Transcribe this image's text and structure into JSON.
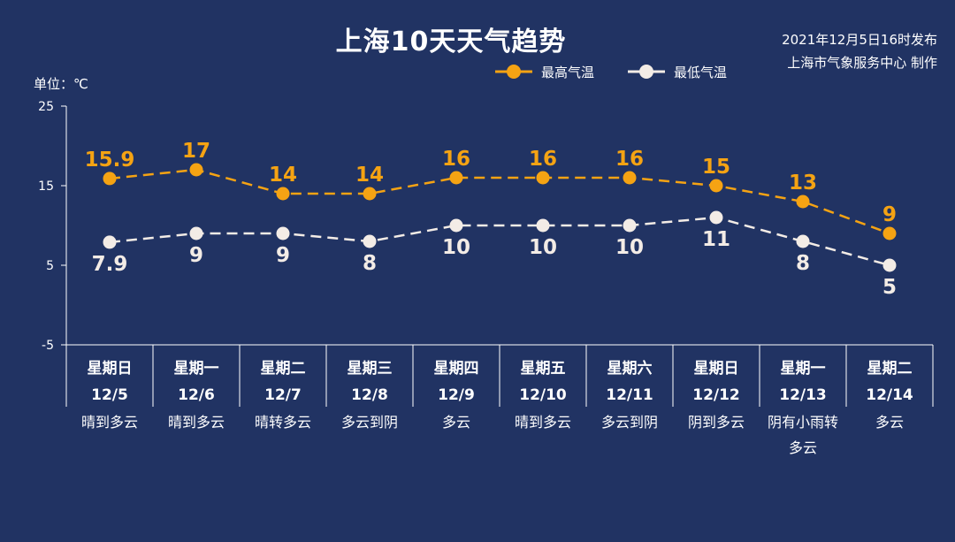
{
  "title": "上海10天天气趋势",
  "issued": "2021年12月5日16时发布",
  "publisher": "上海市气象服务中心 制作",
  "unit_label": "单位：℃",
  "colors": {
    "background": "#213363",
    "high": "#f5a313",
    "low": "#f3ece6",
    "axis": "#ffffff"
  },
  "chart_data": {
    "type": "line",
    "categories": [
      "12/5",
      "12/6",
      "12/7",
      "12/8",
      "12/9",
      "12/10",
      "12/11",
      "12/12",
      "12/13",
      "12/14"
    ],
    "weekdays": [
      "星期日",
      "星期一",
      "星期二",
      "星期三",
      "星期四",
      "星期五",
      "星期六",
      "星期日",
      "星期一",
      "星期二"
    ],
    "weather": [
      [
        "晴到多云"
      ],
      [
        "晴到多云"
      ],
      [
        "晴转多云"
      ],
      [
        "多云到阴"
      ],
      [
        "多云"
      ],
      [
        "晴到多云"
      ],
      [
        "多云到阴"
      ],
      [
        "阴到多云"
      ],
      [
        "阴有小雨转",
        "多云"
      ],
      [
        "多云"
      ]
    ],
    "series": [
      {
        "name": "最高气温",
        "values": [
          15.9,
          17,
          14,
          14,
          16,
          16,
          16,
          15,
          13,
          9
        ],
        "labels": [
          "15.9",
          "17",
          "14",
          "14",
          "16",
          "16",
          "16",
          "15",
          "13",
          "9"
        ],
        "color": "#f5a313",
        "label_position": "above"
      },
      {
        "name": "最低气温",
        "values": [
          7.9,
          9,
          9,
          8,
          10,
          10,
          10,
          11,
          8,
          5
        ],
        "labels": [
          "7.9",
          "9",
          "9",
          "8",
          "10",
          "10",
          "10",
          "11",
          "8",
          "5"
        ],
        "color": "#f3ece6",
        "label_position": "below"
      }
    ],
    "ylim": [
      -5,
      25
    ],
    "yticks": [
      25,
      15,
      5,
      -5
    ],
    "grid": false,
    "legend": "top-center",
    "line_style": "dashed"
  }
}
